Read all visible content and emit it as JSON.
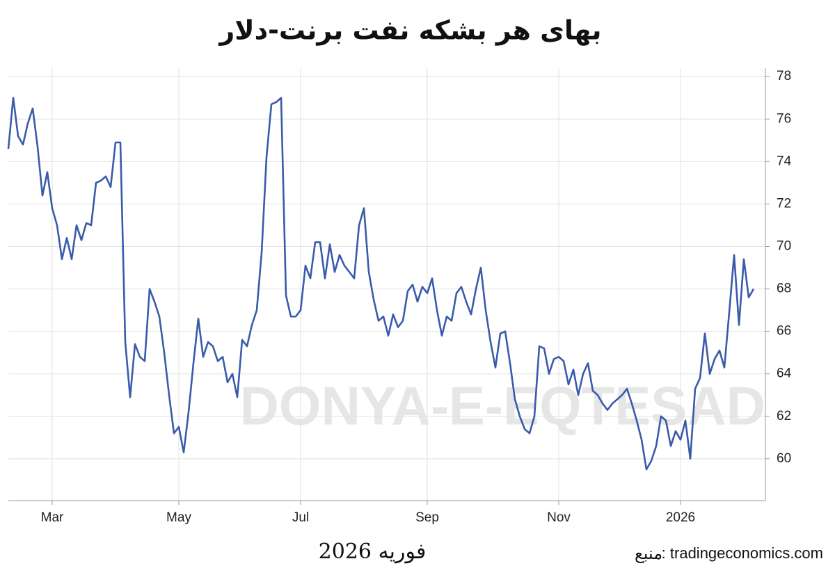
{
  "chart_data": {
    "type": "line",
    "title": "بهای هر بشکه نفت برنت-دلار",
    "date_label": "فوریه 2026",
    "source_label": "منبع",
    "source": ": tradingeconomics.com",
    "watermark": "DONYA-E-EQTESAD",
    "categories": [
      null,
      null,
      null,
      null,
      null,
      null,
      null,
      null,
      null,
      "Mar",
      null,
      null,
      null,
      null,
      null,
      null,
      null,
      null,
      null,
      null,
      null,
      null,
      null,
      null,
      null,
      null,
      null,
      null,
      null,
      null,
      null,
      null,
      null,
      null,
      null,
      "May",
      null,
      null,
      null,
      null,
      null,
      null,
      null,
      null,
      null,
      null,
      null,
      null,
      null,
      null,
      null,
      null,
      null,
      null,
      null,
      null,
      null,
      null,
      null,
      null,
      "Jul",
      null,
      null,
      null,
      null,
      null,
      null,
      null,
      null,
      null,
      null,
      null,
      null,
      null,
      null,
      null,
      null,
      null,
      null,
      null,
      null,
      null,
      null,
      null,
      null,
      null,
      "Sep",
      null,
      null,
      null,
      null,
      null,
      null,
      null,
      null,
      null,
      null,
      null,
      null,
      null,
      null,
      null,
      null,
      null,
      null,
      null,
      null,
      null,
      null,
      null,
      null,
      null,
      null,
      "Nov",
      null,
      null,
      null,
      null,
      null,
      null,
      null,
      null,
      null,
      null,
      null,
      null,
      null,
      null,
      null,
      null,
      null,
      null,
      null,
      null,
      null,
      null,
      null,
      null,
      "2026",
      null,
      null,
      null,
      null,
      null,
      null,
      null,
      null,
      null,
      null,
      null,
      null,
      null,
      null,
      null
    ],
    "series": [
      {
        "name": "Brent",
        "color": "#3a5bab",
        "values": [
          74.6,
          77.0,
          75.2,
          74.8,
          75.8,
          76.5,
          74.7,
          72.4,
          73.5,
          71.8,
          71.0,
          69.4,
          70.4,
          69.4,
          71.0,
          70.3,
          71.1,
          71.0,
          73.0,
          73.1,
          73.3,
          72.8,
          74.9,
          74.9,
          65.5,
          62.9,
          65.4,
          64.8,
          64.6,
          68.0,
          67.4,
          66.7,
          65.0,
          63.0,
          61.2,
          61.5,
          60.3,
          62.2,
          64.5,
          66.6,
          64.8,
          65.5,
          65.3,
          64.6,
          64.8,
          63.6,
          64.0,
          62.9,
          65.6,
          65.3,
          66.3,
          67.0,
          69.7,
          74.2,
          76.7,
          76.8,
          77.0,
          67.7,
          66.7,
          66.7,
          67.0,
          69.1,
          68.5,
          70.2,
          70.2,
          68.5,
          70.1,
          68.8,
          69.6,
          69.1,
          68.8,
          68.5,
          71.0,
          71.8,
          68.8,
          67.5,
          66.5,
          66.7,
          65.8,
          66.8,
          66.2,
          66.5,
          67.9,
          68.2,
          67.4,
          68.1,
          67.8,
          68.5,
          67.0,
          65.8,
          66.7,
          66.5,
          67.8,
          68.1,
          67.4,
          66.8,
          68.0,
          69.0,
          67.0,
          65.5,
          64.3,
          65.9,
          66.0,
          64.5,
          62.8,
          62.0,
          61.4,
          61.2,
          62.0,
          65.3,
          65.2,
          64.0,
          64.7,
          64.8,
          64.6,
          63.5,
          64.2,
          63.0,
          64.0,
          64.5,
          63.2,
          63.0,
          62.6,
          62.3,
          62.6,
          62.8,
          63.0,
          63.3,
          62.6,
          61.8,
          60.9,
          59.5,
          59.9,
          60.6,
          62.0,
          61.8,
          60.6,
          61.3,
          60.9,
          61.8,
          60.0,
          63.3,
          63.8,
          65.9,
          64.0,
          64.7,
          65.1,
          64.3,
          66.9,
          69.6,
          66.3,
          69.4,
          67.6,
          68.0
        ]
      }
    ],
    "ylim": [
      58.03,
      78.4
    ],
    "yticks": [
      60,
      62,
      64,
      66,
      68,
      70,
      72,
      74,
      76,
      78
    ],
    "grid": true,
    "y_axis_side": "right"
  }
}
